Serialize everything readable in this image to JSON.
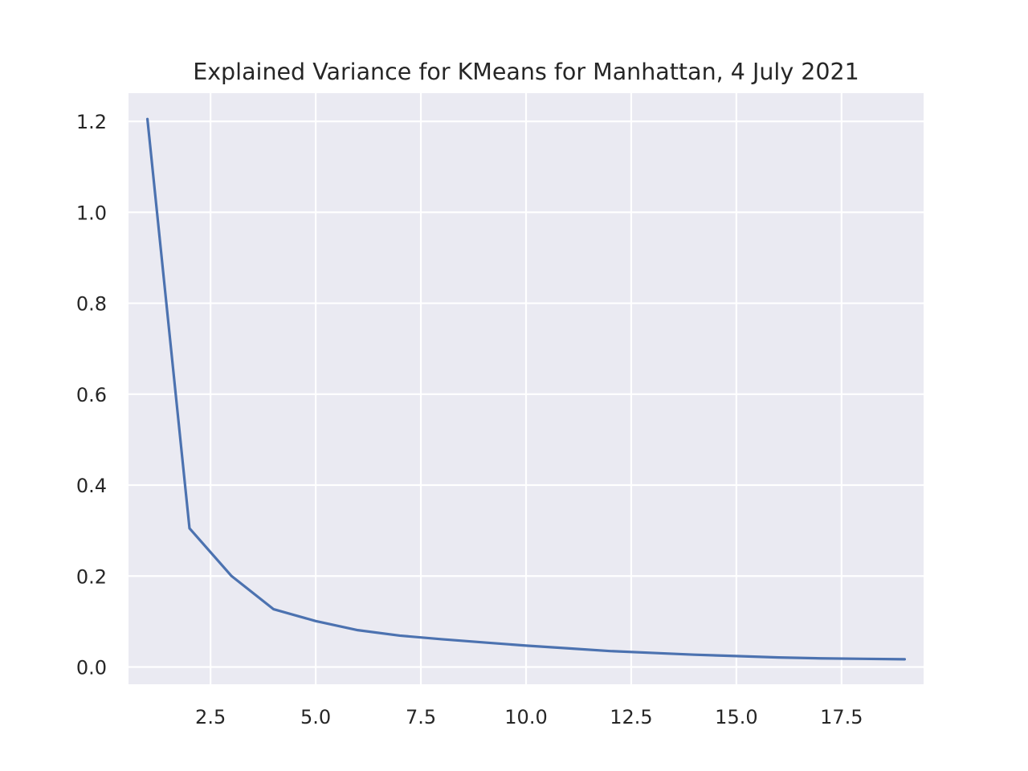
{
  "chart_data": {
    "type": "line",
    "title": "Explained Variance for KMeans for Manhattan, 4 July 2021",
    "xlabel": "",
    "ylabel": "",
    "xlim": [
      0.55,
      19.45
    ],
    "ylim": [
      -0.038,
      1.262
    ],
    "xticks": [
      2.5,
      5.0,
      7.5,
      10.0,
      12.5,
      15.0,
      17.5
    ],
    "xtick_labels": [
      "2.5",
      "5.0",
      "7.5",
      "10.0",
      "12.5",
      "15.0",
      "17.5"
    ],
    "yticks": [
      0.0,
      0.2,
      0.4,
      0.6,
      0.8,
      1.0,
      1.2
    ],
    "ytick_labels": [
      "0.0",
      "0.2",
      "0.4",
      "0.6",
      "0.8",
      "1.0",
      "1.2"
    ],
    "grid": true,
    "series": [
      {
        "color": "#4c72b0",
        "x": [
          1,
          2,
          3,
          4,
          5,
          6,
          7,
          8,
          9,
          10,
          11,
          12,
          13,
          14,
          15,
          16,
          17,
          18,
          19
        ],
        "y": [
          1.205,
          0.305,
          0.2,
          0.127,
          0.101,
          0.081,
          0.069,
          0.061,
          0.054,
          0.047,
          0.041,
          0.035,
          0.031,
          0.027,
          0.024,
          0.021,
          0.019,
          0.018,
          0.017
        ]
      }
    ]
  }
}
